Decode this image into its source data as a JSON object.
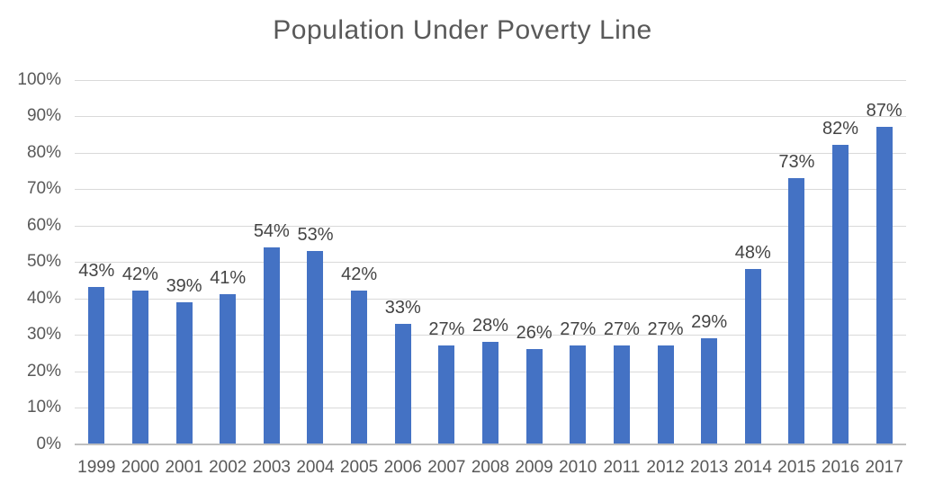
{
  "chart_data": {
    "type": "bar",
    "title": "Population Under Poverty Line",
    "categories": [
      "1999",
      "2000",
      "2001",
      "2002",
      "2003",
      "2004",
      "2005",
      "2006",
      "2007",
      "2008",
      "2009",
      "2010",
      "2011",
      "2012",
      "2013",
      "2014",
      "2015",
      "2016",
      "2017"
    ],
    "values": [
      43,
      42,
      39,
      41,
      54,
      53,
      42,
      33,
      27,
      28,
      26,
      27,
      27,
      27,
      29,
      48,
      73,
      82,
      87
    ],
    "value_labels": [
      "43%",
      "42%",
      "39%",
      "41%",
      "54%",
      "53%",
      "42%",
      "33%",
      "27%",
      "28%",
      "26%",
      "27%",
      "27%",
      "27%",
      "29%",
      "48%",
      "73%",
      "82%",
      "87%"
    ],
    "xlabel": "",
    "ylabel": "",
    "ylim": [
      0,
      100
    ],
    "ytick_step": 10,
    "ytick_labels": [
      "0%",
      "10%",
      "20%",
      "30%",
      "40%",
      "50%",
      "60%",
      "70%",
      "80%",
      "90%",
      "100%"
    ],
    "grid": true,
    "legend": "none",
    "colors": {
      "bar": "#4472C4",
      "gridline": "#D9D9D9",
      "axis_line": "#BFBFBF",
      "title_text": "#595959",
      "tick_text": "#595959",
      "data_label_text": "#444444",
      "background": "#FFFFFF"
    }
  }
}
